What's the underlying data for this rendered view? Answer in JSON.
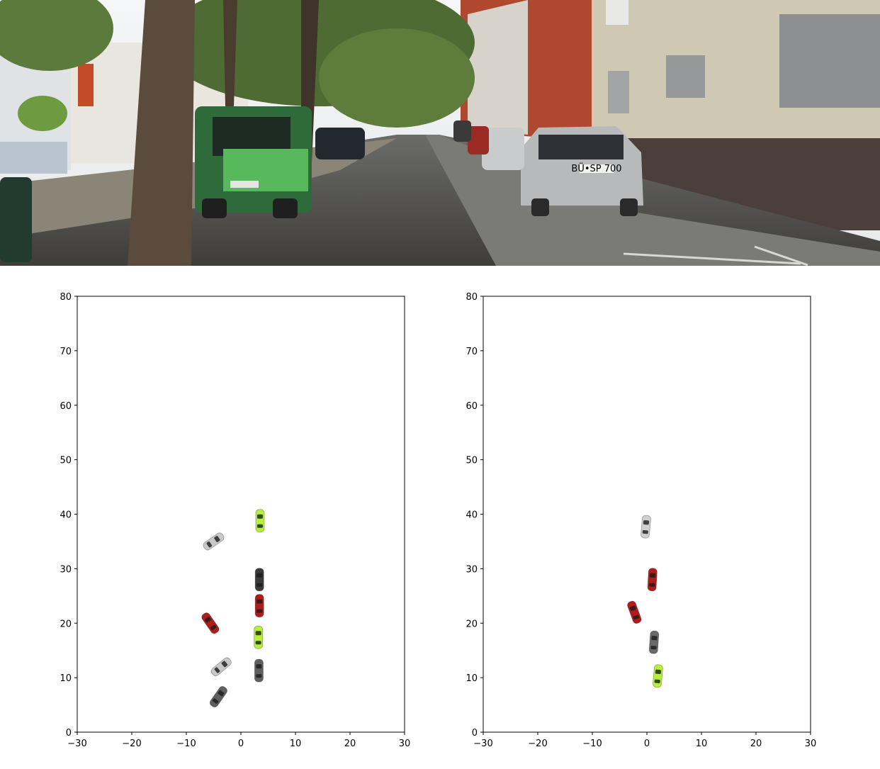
{
  "scene": {
    "description_hidden": "",
    "plate_left": "",
    "plate_right": "BÜ•SP 700"
  },
  "chart_data": [
    {
      "type": "scatter",
      "title": "",
      "xlabel": "",
      "ylabel": "",
      "xlim": [
        -30,
        30
      ],
      "ylim": [
        0,
        80
      ],
      "xticks": [
        -30,
        -20,
        -10,
        0,
        10,
        20,
        30
      ],
      "yticks": [
        0,
        10,
        20,
        30,
        40,
        50,
        60,
        70,
        80
      ],
      "xtick_labels": [
        "−30",
        "−20",
        "−10",
        "0",
        "10",
        "20",
        "30"
      ],
      "ytick_labels": [
        "0",
        "10",
        "20",
        "30",
        "40",
        "50",
        "60",
        "70",
        "80"
      ],
      "grid": false,
      "marker": "car-icon",
      "points": [
        {
          "x": 3.5,
          "y": 38.8,
          "heading": 0,
          "color": "#b5f03a"
        },
        {
          "x": -5.0,
          "y": 35.0,
          "heading": 55,
          "color": "#c8c8c8"
        },
        {
          "x": 3.4,
          "y": 28.0,
          "heading": 0,
          "color": "#3a3a3a"
        },
        {
          "x": 3.4,
          "y": 23.2,
          "heading": 0,
          "color": "#b01c1c"
        },
        {
          "x": -5.6,
          "y": 20.0,
          "heading": -35,
          "color": "#b01c1c"
        },
        {
          "x": 3.2,
          "y": 17.4,
          "heading": 0,
          "color": "#b5f03a"
        },
        {
          "x": -3.6,
          "y": 12.0,
          "heading": 50,
          "color": "#c8c8c8"
        },
        {
          "x": 3.3,
          "y": 11.3,
          "heading": 0,
          "color": "#606060"
        },
        {
          "x": -4.1,
          "y": 6.5,
          "heading": 35,
          "color": "#606060"
        }
      ]
    },
    {
      "type": "scatter",
      "title": "",
      "xlabel": "",
      "ylabel": "",
      "xlim": [
        -30,
        30
      ],
      "ylim": [
        0,
        80
      ],
      "xticks": [
        -30,
        -20,
        -10,
        0,
        10,
        20,
        30
      ],
      "yticks": [
        0,
        10,
        20,
        30,
        40,
        50,
        60,
        70,
        80
      ],
      "xtick_labels": [
        "−30",
        "−20",
        "−10",
        "0",
        "10",
        "20",
        "30"
      ],
      "ytick_labels": [
        "0",
        "10",
        "20",
        "30",
        "40",
        "50",
        "60",
        "70",
        "80"
      ],
      "grid": false,
      "marker": "car-icon",
      "points": [
        {
          "x": -0.2,
          "y": 37.7,
          "heading": 5,
          "color": "#d0d0d0"
        },
        {
          "x": 1.0,
          "y": 28.0,
          "heading": 3,
          "color": "#b01c1c"
        },
        {
          "x": -2.3,
          "y": 22.0,
          "heading": -20,
          "color": "#b01c1c"
        },
        {
          "x": 1.3,
          "y": 16.5,
          "heading": 4,
          "color": "#6a6a6a"
        },
        {
          "x": 2.0,
          "y": 10.3,
          "heading": 5,
          "color": "#b5f03a"
        }
      ]
    }
  ]
}
